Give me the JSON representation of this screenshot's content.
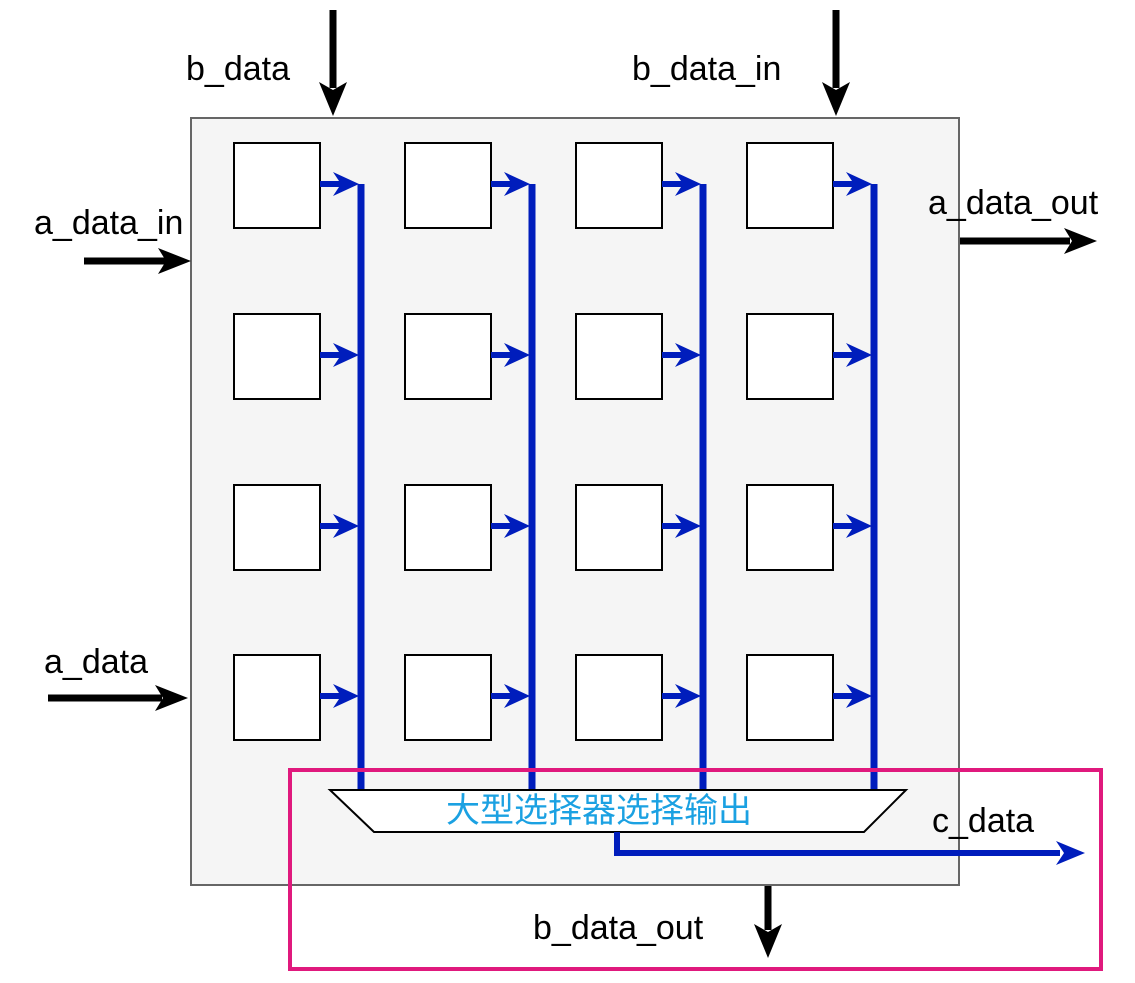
{
  "labels": {
    "b_data": "b_data",
    "b_data_in": "b_data_in",
    "a_data_in": "a_data_in",
    "a_data_out": "a_data_out",
    "a_data": "a_data",
    "c_data": "c_data",
    "b_data_out": "b_data_out"
  },
  "mux": {
    "label": "大型选择器选择输出"
  },
  "grid": {
    "rows": 4,
    "cols": 4
  },
  "colors": {
    "panel_fill": "#f5f5f5",
    "panel_stroke": "#666666",
    "bus_blue": "#001dbc",
    "mux_text": "#1ba1e2",
    "highlight": "#e0197d",
    "black": "#000000"
  }
}
